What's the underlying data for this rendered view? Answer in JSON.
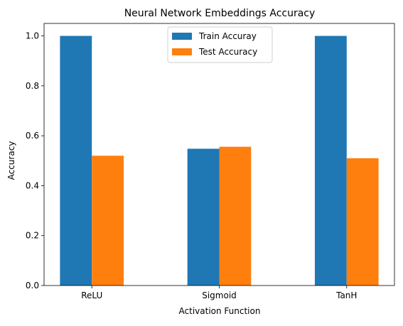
{
  "chart_data": {
    "type": "bar",
    "title": "Neural Network Embeddings Accuracy",
    "xlabel": "Activation Function",
    "ylabel": "Accuracy",
    "categories": [
      "ReLU",
      "Sigmoid",
      "TanH"
    ],
    "series": [
      {
        "name": "Train Accuray",
        "color": "#1f77b4",
        "values": [
          1.0,
          0.548,
          1.0
        ]
      },
      {
        "name": "Test Accuracy",
        "color": "#ff7f0e",
        "values": [
          0.52,
          0.556,
          0.51
        ]
      }
    ],
    "ylim": [
      0,
      1.05
    ],
    "yticks": [
      0.0,
      0.2,
      0.4,
      0.6,
      0.8,
      1.0
    ],
    "ytick_labels": [
      "0.0",
      "0.2",
      "0.4",
      "0.6",
      "0.8",
      "1.0"
    ],
    "grid": false,
    "legend": "top-center"
  }
}
